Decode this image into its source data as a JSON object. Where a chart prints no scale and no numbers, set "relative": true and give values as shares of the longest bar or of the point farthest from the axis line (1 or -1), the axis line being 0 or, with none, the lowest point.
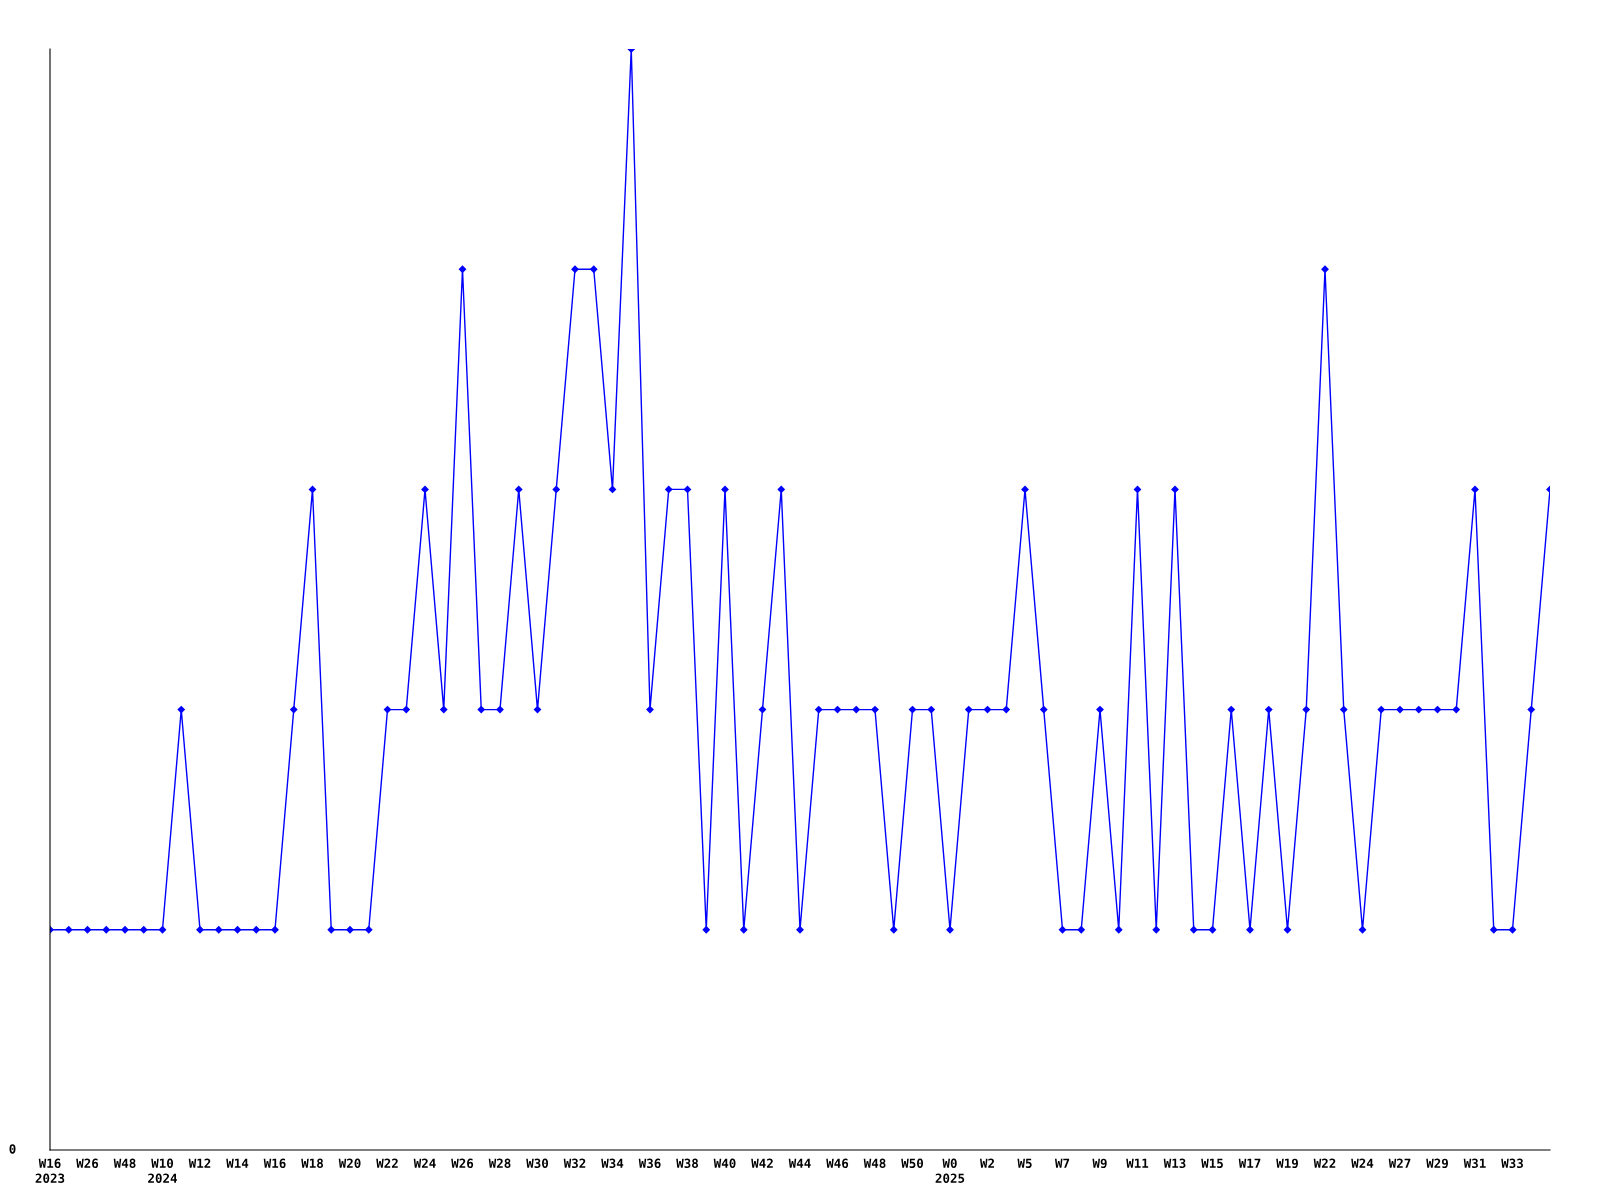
{
  "chart_data": {
    "type": "line",
    "relative": true,
    "marker": "diamond",
    "line_style": "solid",
    "grid": false,
    "legend": false,
    "annotations": [
      "0"
    ],
    "categories": [
      "W16\n2023",
      null,
      "W26",
      null,
      "W48",
      null,
      "W10\n2024",
      null,
      "W12",
      null,
      "W14",
      null,
      "W16",
      null,
      "W18",
      null,
      "W20",
      null,
      "W22",
      null,
      "W24",
      null,
      "W26",
      null,
      "W28",
      null,
      "W30",
      null,
      "W32",
      null,
      "W34",
      null,
      "W36",
      null,
      "W38",
      null,
      "W40",
      null,
      "W42",
      null,
      "W44",
      null,
      "W46",
      null,
      "W48",
      null,
      "W50",
      null,
      "W0\n2025",
      null,
      "W2",
      null,
      "W5",
      null,
      "W7",
      null,
      "W9",
      null,
      "W11",
      null,
      "W13",
      null,
      "W15",
      null,
      "W17",
      null,
      "W19",
      null,
      "W22",
      null,
      "W24",
      null,
      "W27",
      null,
      "W29",
      null,
      "W31",
      null,
      "W33",
      null,
      null
    ],
    "series": [
      {
        "color": "#0000ff",
        "values": [
          0.2,
          0.2,
          0.2,
          0.2,
          0.2,
          0.2,
          0.2,
          0.4,
          0.2,
          0.2,
          0.2,
          0.2,
          0.2,
          0.4,
          0.6,
          0.2,
          0.2,
          0.2,
          0.4,
          0.4,
          0.6,
          0.4,
          0.8,
          0.4,
          0.4,
          0.6,
          0.4,
          0.6,
          0.8,
          0.8,
          0.6,
          1,
          0.4,
          0.6,
          0.6,
          0.2,
          0.6,
          0.2,
          0.4,
          0.6,
          0.2,
          0.4,
          0.4,
          0.4,
          0.4,
          0.2,
          0.4,
          0.4,
          0.2,
          0.4,
          0.4,
          0.4,
          0.6,
          0.4,
          0.2,
          0.2,
          0.4,
          0.2,
          0.6,
          0.2,
          0.6,
          0.2,
          0.2,
          0.4,
          0.2,
          0.4,
          0.2,
          0.4,
          0.8,
          0.4,
          0.2,
          0.4,
          0.4,
          0.4,
          0.4,
          0.4,
          0.6,
          0.2,
          0.2,
          0.4,
          0.6
        ]
      }
    ]
  }
}
